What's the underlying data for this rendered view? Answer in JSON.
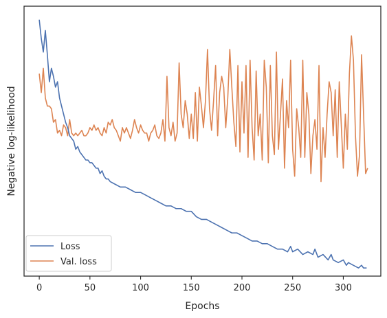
{
  "chart_data": {
    "type": "line",
    "title": "",
    "xlabel": "Epochs",
    "ylabel": "Negative log-likelihood",
    "xlim": [
      -15,
      337
    ],
    "ylim": [
      0,
      1
    ],
    "x_ticks": [
      0,
      50,
      100,
      150,
      200,
      250,
      300
    ],
    "y_ticks_shown": false,
    "grid": false,
    "legend_position": "lower-left",
    "series": [
      {
        "name": "Loss",
        "color": "#4c72b0",
        "points": [
          [
            0,
            0.95
          ],
          [
            2,
            0.88
          ],
          [
            4,
            0.83
          ],
          [
            6,
            0.91
          ],
          [
            8,
            0.82
          ],
          [
            10,
            0.72
          ],
          [
            12,
            0.77
          ],
          [
            14,
            0.74
          ],
          [
            16,
            0.7
          ],
          [
            18,
            0.72
          ],
          [
            20,
            0.66
          ],
          [
            22,
            0.63
          ],
          [
            24,
            0.6
          ],
          [
            26,
            0.57
          ],
          [
            28,
            0.55
          ],
          [
            30,
            0.52
          ],
          [
            32,
            0.51
          ],
          [
            34,
            0.5
          ],
          [
            36,
            0.47
          ],
          [
            38,
            0.48
          ],
          [
            40,
            0.46
          ],
          [
            42,
            0.45
          ],
          [
            44,
            0.44
          ],
          [
            46,
            0.43
          ],
          [
            48,
            0.43
          ],
          [
            50,
            0.42
          ],
          [
            52,
            0.42
          ],
          [
            54,
            0.41
          ],
          [
            56,
            0.4
          ],
          [
            58,
            0.4
          ],
          [
            60,
            0.38
          ],
          [
            62,
            0.39
          ],
          [
            64,
            0.37
          ],
          [
            66,
            0.36
          ],
          [
            68,
            0.36
          ],
          [
            70,
            0.35
          ],
          [
            75,
            0.34
          ],
          [
            80,
            0.33
          ],
          [
            85,
            0.33
          ],
          [
            90,
            0.32
          ],
          [
            95,
            0.31
          ],
          [
            100,
            0.31
          ],
          [
            105,
            0.3
          ],
          [
            110,
            0.29
          ],
          [
            115,
            0.28
          ],
          [
            120,
            0.27
          ],
          [
            125,
            0.26
          ],
          [
            130,
            0.26
          ],
          [
            135,
            0.25
          ],
          [
            140,
            0.25
          ],
          [
            145,
            0.24
          ],
          [
            150,
            0.24
          ],
          [
            155,
            0.22
          ],
          [
            160,
            0.21
          ],
          [
            165,
            0.21
          ],
          [
            170,
            0.2
          ],
          [
            175,
            0.19
          ],
          [
            180,
            0.18
          ],
          [
            185,
            0.17
          ],
          [
            190,
            0.16
          ],
          [
            195,
            0.16
          ],
          [
            200,
            0.15
          ],
          [
            205,
            0.14
          ],
          [
            210,
            0.13
          ],
          [
            215,
            0.13
          ],
          [
            220,
            0.12
          ],
          [
            225,
            0.12
          ],
          [
            230,
            0.11
          ],
          [
            235,
            0.1
          ],
          [
            240,
            0.1
          ],
          [
            245,
            0.09
          ],
          [
            248,
            0.11
          ],
          [
            250,
            0.09
          ],
          [
            255,
            0.1
          ],
          [
            260,
            0.08
          ],
          [
            265,
            0.09
          ],
          [
            270,
            0.08
          ],
          [
            272,
            0.1
          ],
          [
            275,
            0.07
          ],
          [
            280,
            0.08
          ],
          [
            285,
            0.06
          ],
          [
            288,
            0.08
          ],
          [
            290,
            0.06
          ],
          [
            295,
            0.05
          ],
          [
            300,
            0.06
          ],
          [
            303,
            0.04
          ],
          [
            305,
            0.05
          ],
          [
            310,
            0.04
          ],
          [
            315,
            0.03
          ],
          [
            318,
            0.04
          ],
          [
            320,
            0.03
          ],
          [
            323,
            0.03
          ]
        ]
      },
      {
        "name": "Val. loss",
        "color": "#dd8452",
        "points": [
          [
            0,
            0.75
          ],
          [
            2,
            0.68
          ],
          [
            4,
            0.77
          ],
          [
            6,
            0.66
          ],
          [
            8,
            0.63
          ],
          [
            10,
            0.63
          ],
          [
            12,
            0.62
          ],
          [
            14,
            0.57
          ],
          [
            16,
            0.58
          ],
          [
            18,
            0.53
          ],
          [
            20,
            0.54
          ],
          [
            22,
            0.52
          ],
          [
            24,
            0.56
          ],
          [
            26,
            0.55
          ],
          [
            28,
            0.52
          ],
          [
            30,
            0.58
          ],
          [
            32,
            0.53
          ],
          [
            34,
            0.52
          ],
          [
            36,
            0.53
          ],
          [
            38,
            0.52
          ],
          [
            40,
            0.53
          ],
          [
            42,
            0.54
          ],
          [
            44,
            0.52
          ],
          [
            46,
            0.52
          ],
          [
            48,
            0.53
          ],
          [
            50,
            0.55
          ],
          [
            52,
            0.54
          ],
          [
            54,
            0.56
          ],
          [
            56,
            0.54
          ],
          [
            58,
            0.55
          ],
          [
            60,
            0.53
          ],
          [
            62,
            0.52
          ],
          [
            64,
            0.55
          ],
          [
            66,
            0.53
          ],
          [
            68,
            0.57
          ],
          [
            70,
            0.56
          ],
          [
            72,
            0.58
          ],
          [
            74,
            0.55
          ],
          [
            76,
            0.54
          ],
          [
            78,
            0.52
          ],
          [
            80,
            0.5
          ],
          [
            82,
            0.55
          ],
          [
            84,
            0.53
          ],
          [
            86,
            0.55
          ],
          [
            88,
            0.53
          ],
          [
            90,
            0.51
          ],
          [
            92,
            0.54
          ],
          [
            94,
            0.58
          ],
          [
            96,
            0.55
          ],
          [
            98,
            0.53
          ],
          [
            100,
            0.56
          ],
          [
            102,
            0.54
          ],
          [
            104,
            0.53
          ],
          [
            106,
            0.53
          ],
          [
            108,
            0.5
          ],
          [
            110,
            0.53
          ],
          [
            112,
            0.54
          ],
          [
            114,
            0.56
          ],
          [
            116,
            0.52
          ],
          [
            118,
            0.51
          ],
          [
            120,
            0.53
          ],
          [
            122,
            0.58
          ],
          [
            124,
            0.5
          ],
          [
            126,
            0.74
          ],
          [
            128,
            0.55
          ],
          [
            130,
            0.52
          ],
          [
            132,
            0.57
          ],
          [
            134,
            0.5
          ],
          [
            136,
            0.53
          ],
          [
            138,
            0.79
          ],
          [
            140,
            0.6
          ],
          [
            142,
            0.55
          ],
          [
            144,
            0.65
          ],
          [
            146,
            0.6
          ],
          [
            148,
            0.51
          ],
          [
            150,
            0.6
          ],
          [
            152,
            0.51
          ],
          [
            154,
            0.68
          ],
          [
            156,
            0.5
          ],
          [
            158,
            0.7
          ],
          [
            160,
            0.63
          ],
          [
            162,
            0.55
          ],
          [
            164,
            0.65
          ],
          [
            166,
            0.84
          ],
          [
            168,
            0.62
          ],
          [
            170,
            0.54
          ],
          [
            172,
            0.65
          ],
          [
            174,
            0.78
          ],
          [
            176,
            0.52
          ],
          [
            178,
            0.68
          ],
          [
            180,
            0.74
          ],
          [
            182,
            0.7
          ],
          [
            184,
            0.55
          ],
          [
            186,
            0.66
          ],
          [
            188,
            0.84
          ],
          [
            190,
            0.7
          ],
          [
            192,
            0.57
          ],
          [
            194,
            0.48
          ],
          [
            196,
            0.78
          ],
          [
            198,
            0.46
          ],
          [
            200,
            0.72
          ],
          [
            202,
            0.53
          ],
          [
            204,
            0.78
          ],
          [
            206,
            0.44
          ],
          [
            208,
            0.8
          ],
          [
            210,
            0.55
          ],
          [
            212,
            0.43
          ],
          [
            214,
            0.76
          ],
          [
            216,
            0.52
          ],
          [
            218,
            0.6
          ],
          [
            220,
            0.43
          ],
          [
            222,
            0.8
          ],
          [
            224,
            0.7
          ],
          [
            226,
            0.42
          ],
          [
            228,
            0.78
          ],
          [
            230,
            0.52
          ],
          [
            232,
            0.45
          ],
          [
            234,
            0.83
          ],
          [
            236,
            0.47
          ],
          [
            238,
            0.6
          ],
          [
            240,
            0.73
          ],
          [
            242,
            0.4
          ],
          [
            244,
            0.65
          ],
          [
            246,
            0.55
          ],
          [
            248,
            0.8
          ],
          [
            250,
            0.47
          ],
          [
            252,
            0.37
          ],
          [
            254,
            0.62
          ],
          [
            256,
            0.55
          ],
          [
            258,
            0.44
          ],
          [
            260,
            0.8
          ],
          [
            262,
            0.44
          ],
          [
            264,
            0.68
          ],
          [
            266,
            0.6
          ],
          [
            268,
            0.38
          ],
          [
            270,
            0.52
          ],
          [
            272,
            0.58
          ],
          [
            274,
            0.47
          ],
          [
            276,
            0.78
          ],
          [
            278,
            0.35
          ],
          [
            280,
            0.55
          ],
          [
            282,
            0.44
          ],
          [
            284,
            0.6
          ],
          [
            286,
            0.72
          ],
          [
            288,
            0.68
          ],
          [
            290,
            0.52
          ],
          [
            292,
            0.69
          ],
          [
            294,
            0.44
          ],
          [
            296,
            0.72
          ],
          [
            298,
            0.56
          ],
          [
            300,
            0.4
          ],
          [
            302,
            0.6
          ],
          [
            304,
            0.47
          ],
          [
            306,
            0.75
          ],
          [
            308,
            0.89
          ],
          [
            310,
            0.8
          ],
          [
            312,
            0.52
          ],
          [
            314,
            0.37
          ],
          [
            316,
            0.45
          ],
          [
            318,
            0.82
          ],
          [
            320,
            0.6
          ],
          [
            322,
            0.38
          ],
          [
            324,
            0.4
          ]
        ]
      }
    ]
  }
}
